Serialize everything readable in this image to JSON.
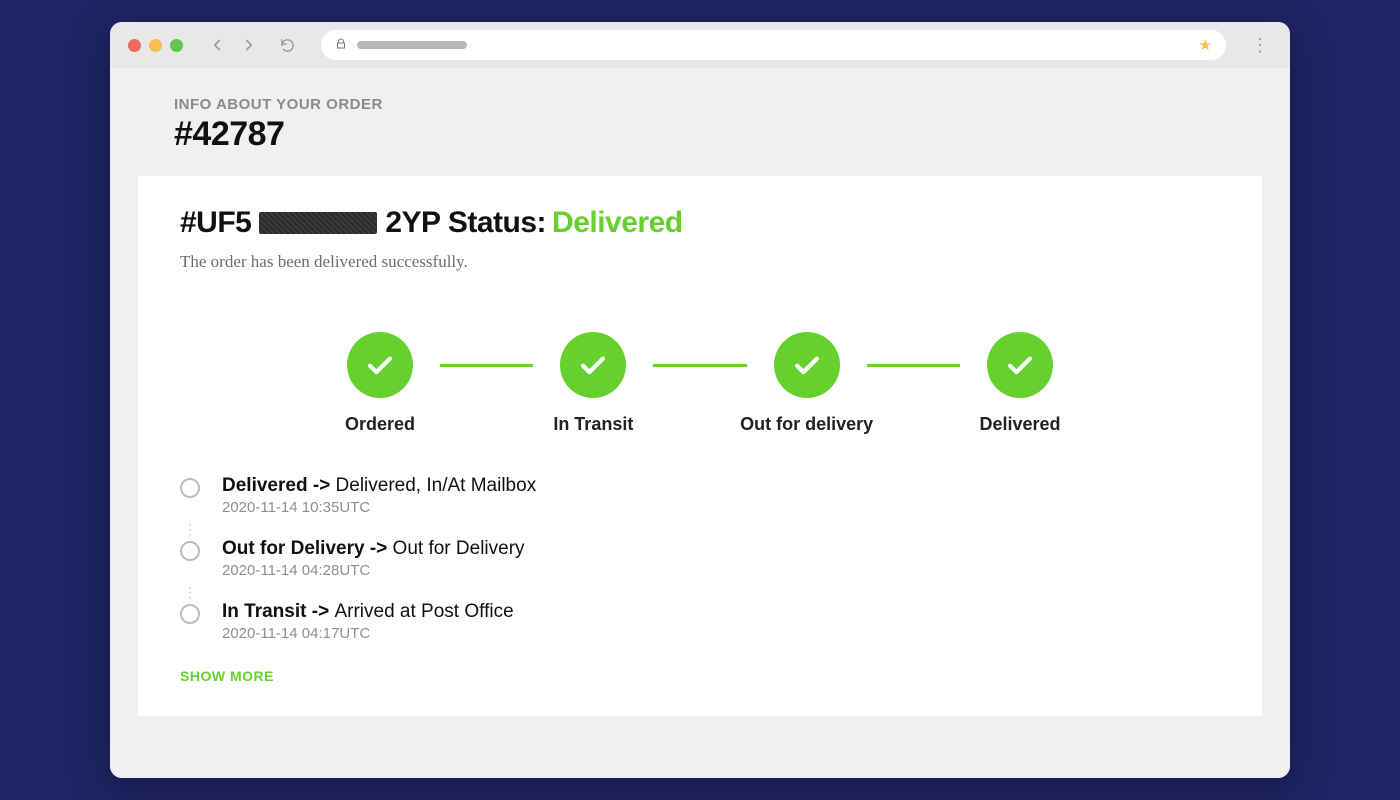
{
  "colors": {
    "page_bg": "#1f2464",
    "chrome_bg": "#e8e8e8",
    "viewport_bg": "#f0f0f0",
    "card_bg": "#ffffff",
    "accent_green": "#66d02c",
    "text_primary": "#111111",
    "text_muted": "#8a8a8a",
    "ring_border": "#bdbdbd"
  },
  "header": {
    "eyebrow": "INFO ABOUT YOUR ORDER",
    "order_number": "#42787"
  },
  "status": {
    "prefix": "#UF5",
    "suffix": "2YP Status:",
    "word": "Delivered",
    "subtext": "The order has been delivered successfully."
  },
  "steps": [
    {
      "label": "Ordered",
      "done": true
    },
    {
      "label": "In Transit",
      "done": true
    },
    {
      "label": "Out for delivery",
      "done": true
    },
    {
      "label": "Delivered",
      "done": true
    }
  ],
  "events": [
    {
      "status": "Delivered",
      "detail": "Delivered, In/At Mailbox",
      "time": "2020-11-14 10:35UTC"
    },
    {
      "status": "Out for Delivery",
      "detail": "Out for Delivery",
      "time": "2020-11-14 04:28UTC"
    },
    {
      "status": "In Transit",
      "detail": "Arrived at Post Office",
      "time": "2020-11-14 04:17UTC"
    }
  ],
  "actions": {
    "show_more": "SHOW MORE"
  }
}
